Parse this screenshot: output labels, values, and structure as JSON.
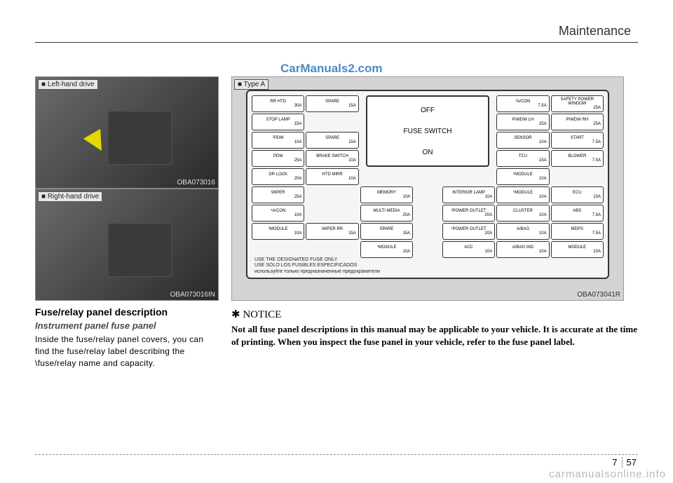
{
  "section_title": "Maintenance",
  "watermark_top": "CarManuals2.com",
  "watermark_bottom": "carmanualsonline.info",
  "page_chapter": "7",
  "page_number": "57",
  "photos": {
    "left_drive": {
      "tag": "■ Left-hand drive",
      "code": "OBA073016"
    },
    "right_drive": {
      "tag": "■ Right-hand drive",
      "code": "OBA073016IN"
    }
  },
  "diagram": {
    "tag": "■ Type A",
    "code": "OBA073041R",
    "switch": {
      "off": "OFF",
      "label": "FUSE SWITCH",
      "on": "ON"
    },
    "footer": [
      "USE THE DESIGNATED FUSE ONLY",
      "USE SOLO LOS FUSIBLES ESPECIFICADOS",
      "используйте только предназначенные предохранители"
    ],
    "boxes": [
      {
        "r": 1,
        "c": 1,
        "label": "RR HTD",
        "amp": "30A"
      },
      {
        "r": 1,
        "c": 2,
        "label": "SPARE",
        "amp": "15A"
      },
      {
        "r": 1,
        "c": 5,
        "label": "³A/CON",
        "amp": "7.5A"
      },
      {
        "r": 1,
        "c": 6,
        "label": "SAFETY POWER WINDOW",
        "amp": "25A"
      },
      {
        "r": 2,
        "c": 1,
        "label": "STOP LAMP",
        "amp": "15A"
      },
      {
        "r": 2,
        "c": 5,
        "label": "P/WDW LH",
        "amp": "25A"
      },
      {
        "r": 2,
        "c": 6,
        "label": "P/WDW RH",
        "amp": "25A"
      },
      {
        "r": 3,
        "c": 1,
        "label": "²PDM",
        "amp": "10A"
      },
      {
        "r": 3,
        "c": 2,
        "label": "SPARE",
        "amp": "15A"
      },
      {
        "r": 3,
        "c": 5,
        "label": "SENSOR",
        "amp": "10A"
      },
      {
        "r": 3,
        "c": 6,
        "label": "START",
        "amp": "7.5A"
      },
      {
        "r": 4,
        "c": 1,
        "label": "PDM",
        "amp": "25A"
      },
      {
        "r": 4,
        "c": 2,
        "label": "BRAKE SWITCH",
        "amp": "10A"
      },
      {
        "r": 4,
        "c": 5,
        "label": "TCU",
        "amp": "15A"
      },
      {
        "r": 4,
        "c": 6,
        "label": "BLOWER",
        "amp": "7.5A"
      },
      {
        "r": 5,
        "c": 1,
        "label": "DR LOCK",
        "amp": "20A"
      },
      {
        "r": 5,
        "c": 2,
        "label": "HTD MIRR",
        "amp": "10A"
      },
      {
        "r": 5,
        "c": 5,
        "label": "²MODULE",
        "amp": "10A"
      },
      {
        "r": 6,
        "c": 1,
        "label": "WIPER",
        "amp": "25A"
      },
      {
        "r": 6,
        "c": 3,
        "label": "MEMORY",
        "amp": "10A"
      },
      {
        "r": 6,
        "c": 4,
        "label": "INTERIOR LAMP",
        "amp": "10A"
      },
      {
        "r": 6,
        "c": 5,
        "label": "⁶MODULE",
        "amp": "10A"
      },
      {
        "r": 6,
        "c": 6,
        "label": "ECU",
        "amp": "10A"
      },
      {
        "r": 7,
        "c": 1,
        "label": "⁵A/CON",
        "amp": "10A"
      },
      {
        "r": 7,
        "c": 3,
        "label": "MULTI MEDIA",
        "amp": "20A"
      },
      {
        "r": 7,
        "c": 4,
        "label": "²POWER OUTLET",
        "amp": "20A"
      },
      {
        "r": 7,
        "c": 5,
        "label": "CLUSTER",
        "amp": "10A"
      },
      {
        "r": 7,
        "c": 6,
        "label": "ABS",
        "amp": "7.5A"
      },
      {
        "r": 8,
        "c": 1,
        "label": "³MODULE",
        "amp": "10A"
      },
      {
        "r": 8,
        "c": 2,
        "label": "WIPER RR",
        "amp": "15A"
      },
      {
        "r": 8,
        "c": 3,
        "label": "SPARE",
        "amp": "15A"
      },
      {
        "r": 8,
        "c": 4,
        "label": "¹POWER OUTLET",
        "amp": "20A"
      },
      {
        "r": 8,
        "c": 5,
        "label": "A/BAG",
        "amp": "10A"
      },
      {
        "r": 8,
        "c": 6,
        "label": "MDPS",
        "amp": "7.5A"
      },
      {
        "r": 9,
        "c": 3,
        "label": "⁴MODULE",
        "amp": "10A"
      },
      {
        "r": 9,
        "c": 4,
        "label": "ACC",
        "amp": "10A"
      },
      {
        "r": 9,
        "c": 5,
        "label": "A/BAG IND",
        "amp": "10A"
      },
      {
        "r": 9,
        "c": 6,
        "label": "MODULE",
        "amp": "10A"
      }
    ]
  },
  "description": {
    "heading": "Fuse/relay panel description",
    "subheading": "Instrument panel fuse panel",
    "body": "Inside the fuse/relay panel covers, you can find the fuse/relay label describing the \\fuse/relay name and capacity."
  },
  "notice": {
    "heading": "NOTICE",
    "body": "Not all fuse panel descriptions in this manual may be applicable to your vehicle. It is accurate at the time of printing. When you inspect the fuse panel in your vehicle, refer to the fuse panel label."
  }
}
